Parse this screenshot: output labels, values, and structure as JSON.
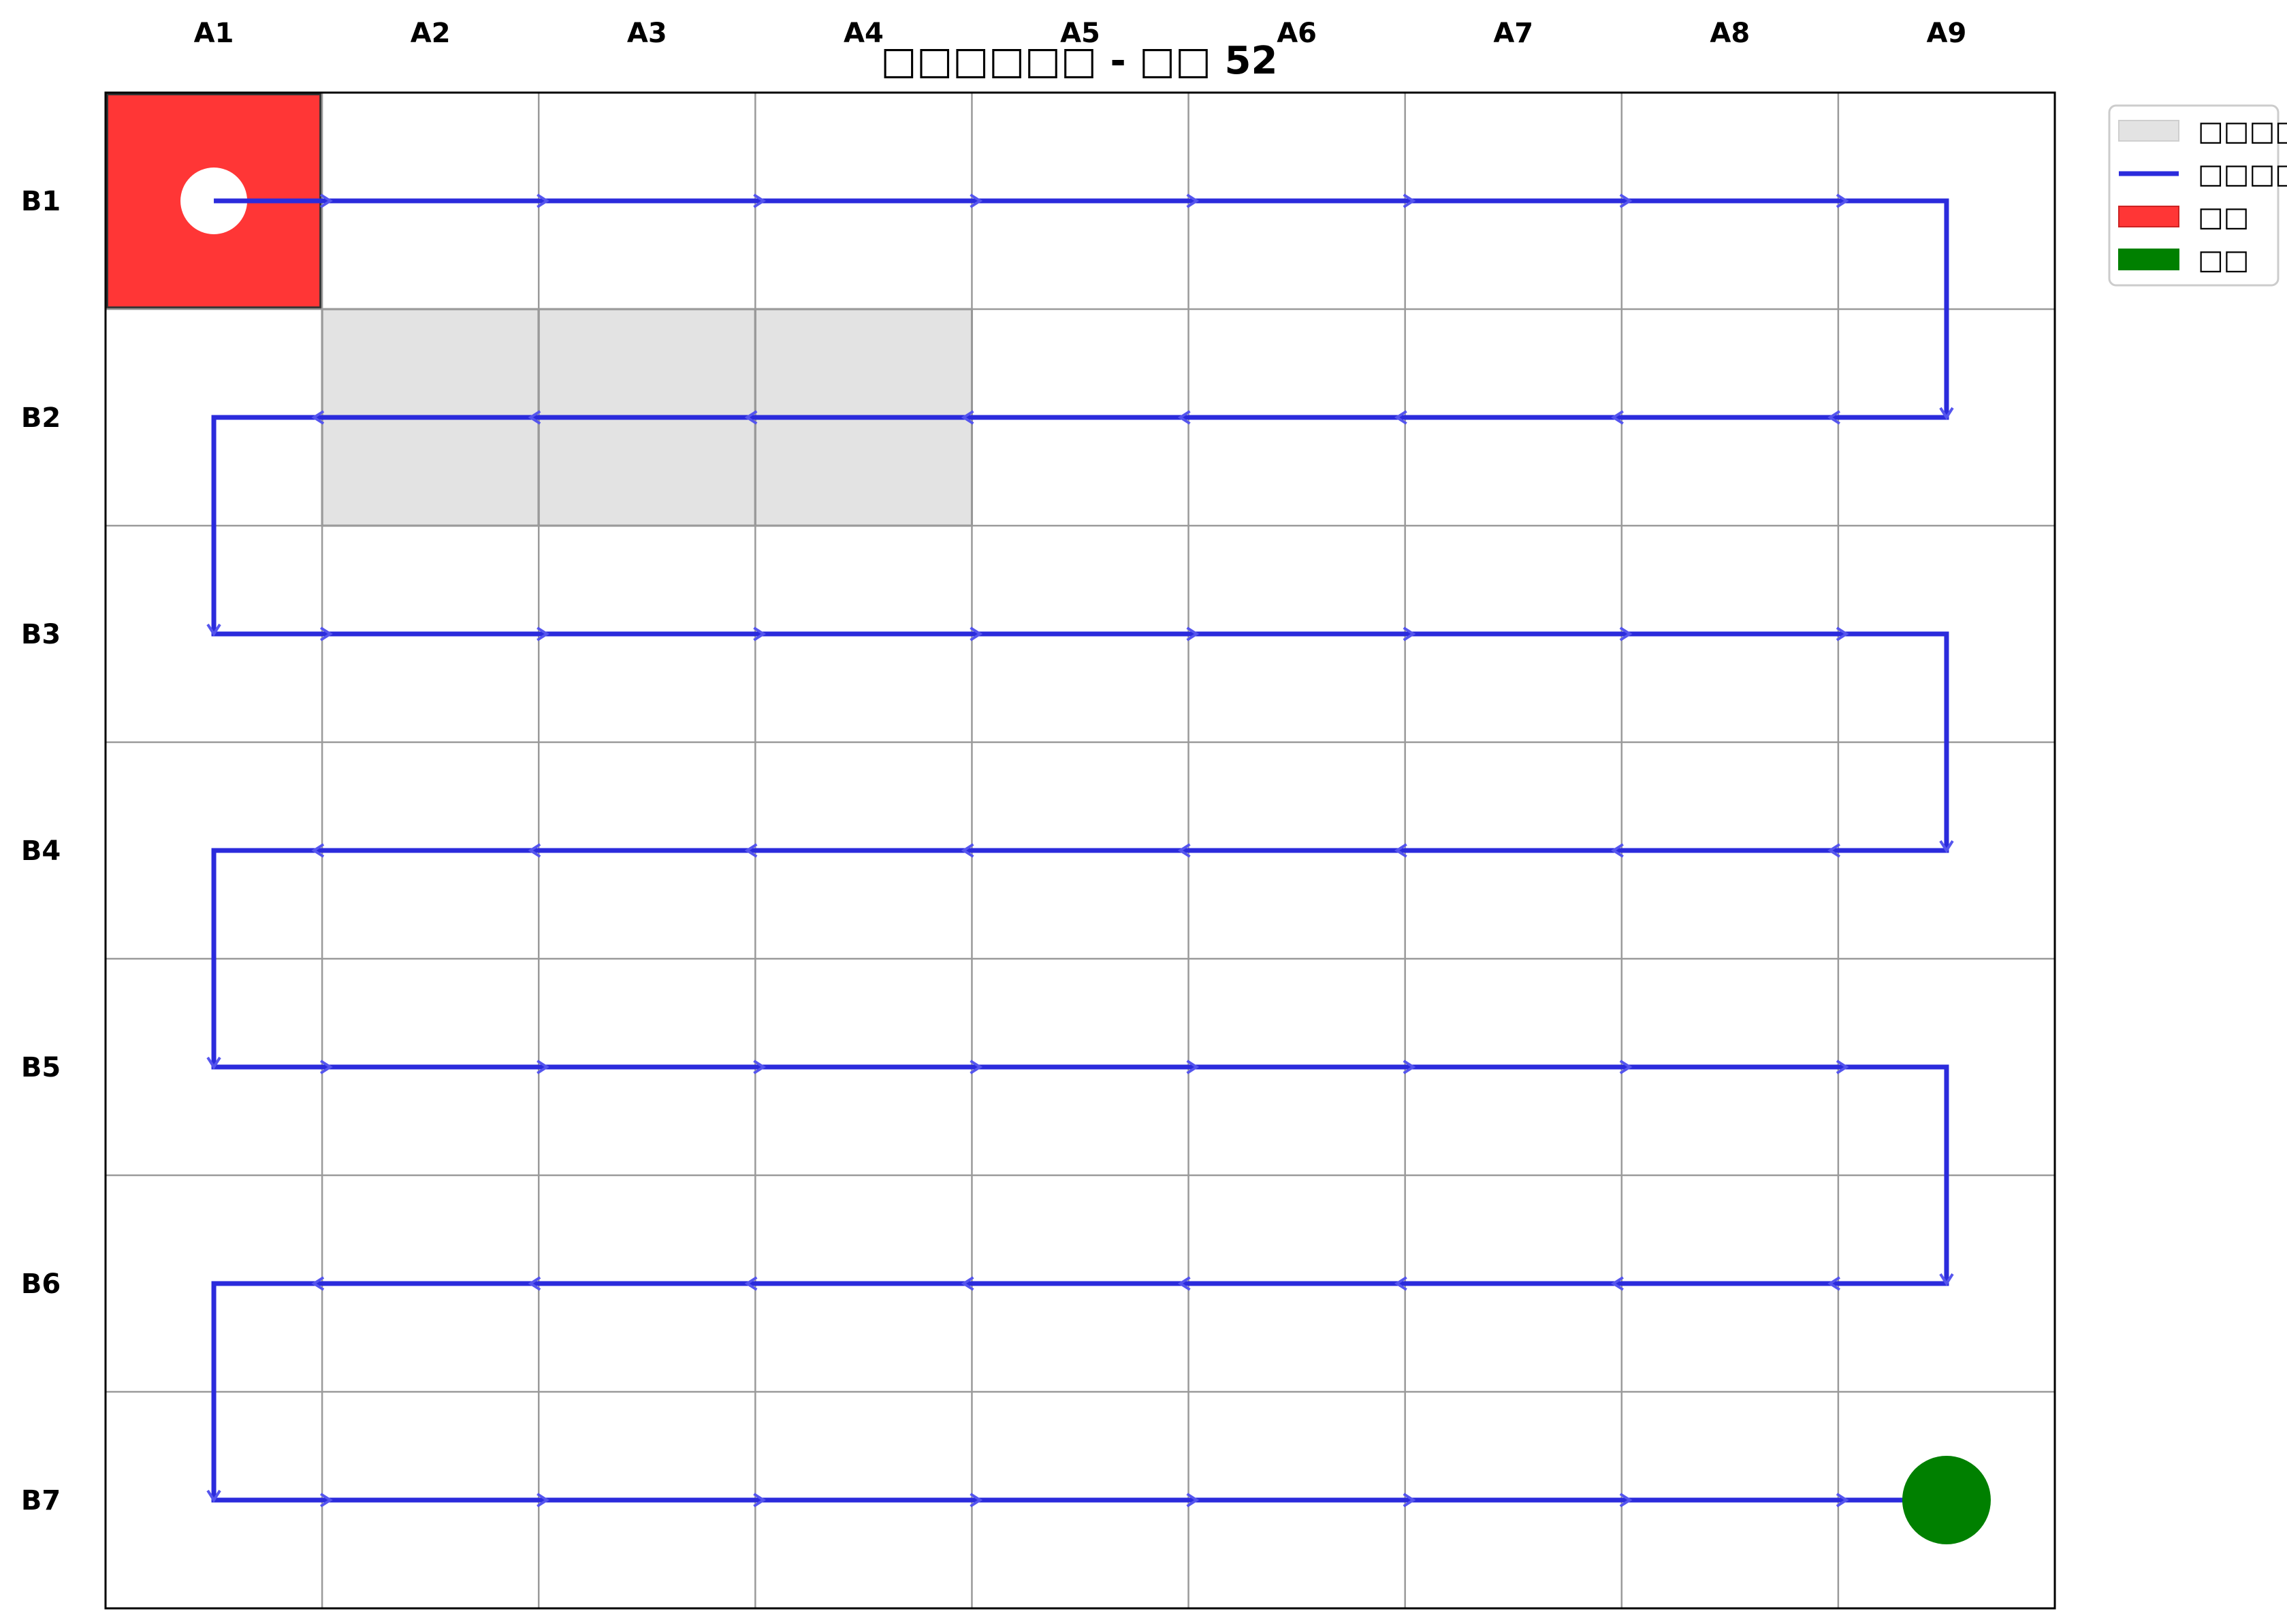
{
  "title": "□□□□□□ - □□ 52",
  "columns": [
    "A1",
    "A2",
    "A3",
    "A4",
    "A5",
    "A6",
    "A7",
    "A8",
    "A9"
  ],
  "rows": [
    "B1",
    "B2",
    "B3",
    "B4",
    "B5",
    "B6",
    "B7"
  ],
  "blocked_cells": [
    {
      "col": 2,
      "row": 2
    },
    {
      "col": 3,
      "row": 2
    },
    {
      "col": 4,
      "row": 2
    }
  ],
  "start": {
    "col": 1,
    "row": 1
  },
  "end": {
    "col": 9,
    "row": 7
  },
  "path": [
    {
      "col": 1,
      "row": 1
    },
    {
      "col": 9,
      "row": 1
    },
    {
      "col": 9,
      "row": 2
    },
    {
      "col": 1,
      "row": 2
    },
    {
      "col": 1,
      "row": 3
    },
    {
      "col": 9,
      "row": 3
    },
    {
      "col": 9,
      "row": 4
    },
    {
      "col": 1,
      "row": 4
    },
    {
      "col": 1,
      "row": 5
    },
    {
      "col": 9,
      "row": 5
    },
    {
      "col": 9,
      "row": 6
    },
    {
      "col": 1,
      "row": 6
    },
    {
      "col": 1,
      "row": 7
    },
    {
      "col": 9,
      "row": 7
    }
  ],
  "legend": [
    {
      "label": "□□□□",
      "kind": "blocked"
    },
    {
      "label": "□□□□",
      "kind": "path"
    },
    {
      "label": "□□",
      "kind": "start"
    },
    {
      "label": "□□",
      "kind": "end"
    }
  ],
  "colors": {
    "path": "#2b2bdc",
    "blocked": "#e3e3e3",
    "start": "#ff3636",
    "end": "#008000",
    "grid": "#9a9a9a"
  }
}
